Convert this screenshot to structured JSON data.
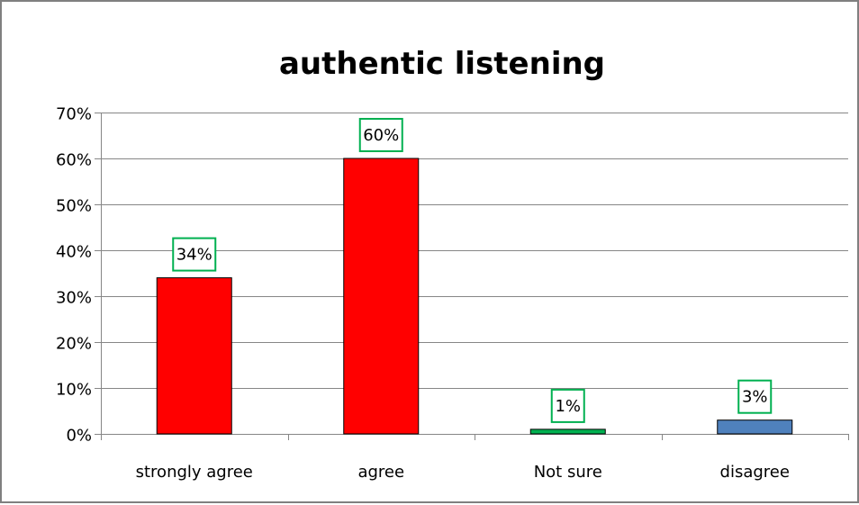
{
  "chart_data": {
    "type": "bar",
    "title": "authentic listening",
    "categories": [
      "strongly agree",
      "agree",
      "Not sure",
      "disagree"
    ],
    "values": [
      34,
      60,
      1,
      3
    ],
    "data_labels": [
      "34%",
      "60%",
      "1%",
      "3%"
    ],
    "bar_colors": [
      "#ff0000",
      "#ff0000",
      "#00b050",
      "#4f81bd"
    ],
    "label_box_color": "#00b050",
    "ylim": [
      0,
      70
    ],
    "ytick_values": [
      0,
      10,
      20,
      30,
      40,
      50,
      60,
      70
    ],
    "ytick_labels": [
      "0%",
      "10%",
      "20%",
      "30%",
      "40%",
      "50%",
      "60%",
      "70%"
    ],
    "grid": true,
    "legend": "none",
    "xlabel": "",
    "ylabel": ""
  }
}
